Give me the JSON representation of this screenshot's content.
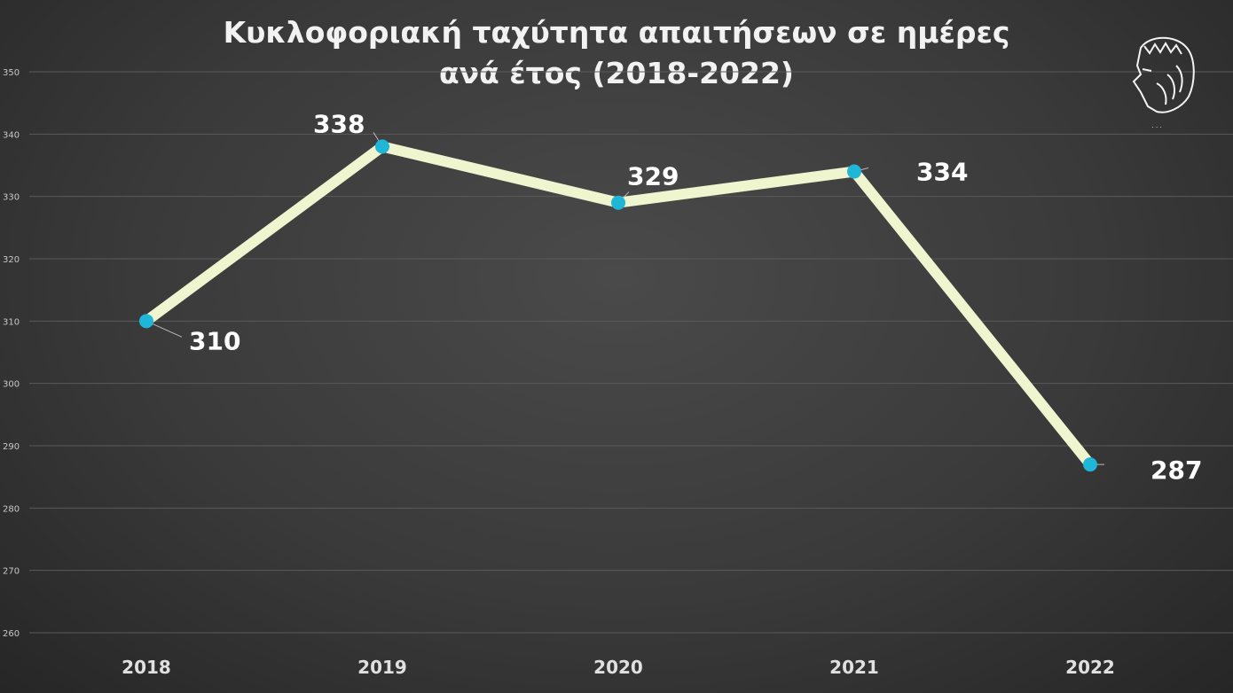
{
  "chart_data": {
    "type": "line",
    "title_line1": "Κυκλοφοριακή ταχύτητα απαιτήσεων σε ημέρες",
    "title_line2": "ανά έτος (2018-2022)",
    "categories": [
      "2018",
      "2019",
      "2020",
      "2021",
      "2022"
    ],
    "values": [
      310,
      338,
      329,
      334,
      287
    ],
    "ylim": [
      260,
      350
    ],
    "yticks": [
      260,
      270,
      280,
      290,
      300,
      310,
      320,
      330,
      340,
      350
    ],
    "grid": true,
    "line_color": "#eef5cf",
    "marker_color": "#1fb6d8"
  }
}
